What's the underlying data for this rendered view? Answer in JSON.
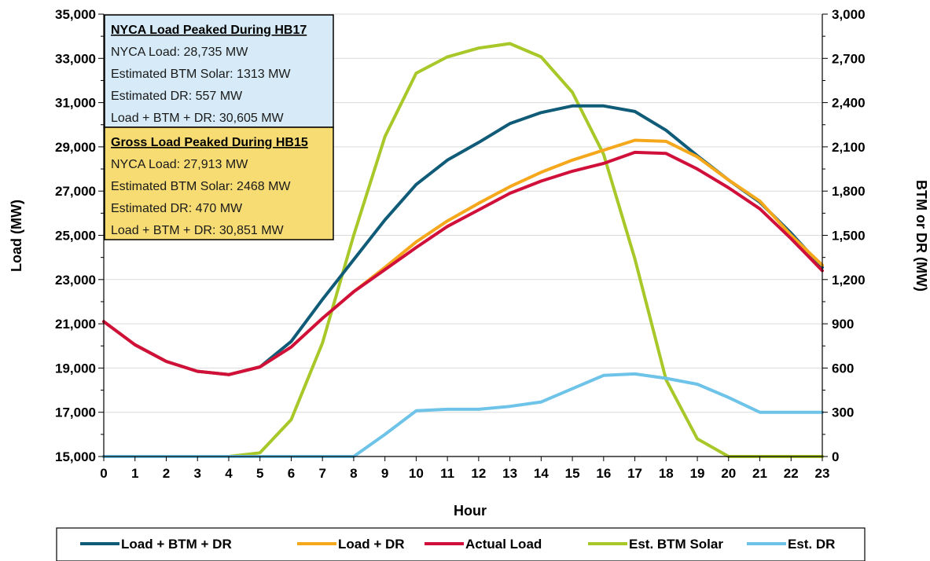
{
  "chart_data": {
    "type": "line",
    "xlabel": "Hour",
    "ylabel": "Load (MW)",
    "y2label": "BTM or DR (MW)",
    "x": [
      0,
      1,
      2,
      3,
      4,
      5,
      6,
      7,
      8,
      9,
      10,
      11,
      12,
      13,
      14,
      15,
      16,
      17,
      18,
      19,
      20,
      21,
      22,
      23
    ],
    "ylim": [
      15000,
      35000
    ],
    "yticks": [
      15000,
      17000,
      19000,
      21000,
      23000,
      25000,
      27000,
      29000,
      31000,
      33000,
      35000
    ],
    "ytick_labels": [
      "15,000",
      "17,000",
      "19,000",
      "21,000",
      "23,000",
      "25,000",
      "27,000",
      "29,000",
      "31,000",
      "33,000",
      "35,000"
    ],
    "y2lim": [
      0,
      3000
    ],
    "y2ticks": [
      0,
      300,
      600,
      900,
      1200,
      1500,
      1800,
      2100,
      2400,
      2700,
      3000
    ],
    "y2tick_labels": [
      "0",
      "300",
      "600",
      "900",
      "1,200",
      "1,500",
      "1,800",
      "2,100",
      "2,400",
      "2,700",
      "3,000"
    ],
    "legend_position": "bottom",
    "series": [
      {
        "name": "Load + BTM + DR",
        "axis": "left",
        "color": "#0f5b78",
        "values": [
          21100,
          20050,
          19300,
          18850,
          18700,
          19050,
          20200,
          22100,
          23900,
          25700,
          27300,
          28400,
          29200,
          30050,
          30550,
          30850,
          30850,
          30600,
          29750,
          28600,
          27500,
          26500,
          25100,
          23550
        ]
      },
      {
        "name": "Load + DR",
        "axis": "left",
        "color": "#f5a81c",
        "values": [
          21100,
          20050,
          19300,
          18850,
          18700,
          19050,
          19950,
          21250,
          22450,
          23550,
          24700,
          25650,
          26450,
          27200,
          27850,
          28400,
          28850,
          29300,
          29250,
          28550,
          27500,
          26550,
          25000,
          23650
        ]
      },
      {
        "name": "Actual Load",
        "axis": "left",
        "color": "#d0103a",
        "values": [
          21100,
          20050,
          19300,
          18850,
          18700,
          19050,
          19950,
          21250,
          22450,
          23450,
          24450,
          25400,
          26150,
          26900,
          27450,
          27900,
          28250,
          28750,
          28700,
          28000,
          27150,
          26200,
          24850,
          23400
        ]
      },
      {
        "name": "Est. BTM Solar",
        "axis": "right",
        "color": "#a8c82a",
        "values": [
          0,
          0,
          0,
          0,
          0,
          25,
          250,
          770,
          1500,
          2170,
          2600,
          2710,
          2770,
          2800,
          2710,
          2470,
          2050,
          1340,
          520,
          120,
          0,
          0,
          0,
          0
        ]
      },
      {
        "name": "Est. DR",
        "axis": "right",
        "color": "#6ec3e8",
        "values": [
          0,
          0,
          0,
          0,
          0,
          0,
          0,
          0,
          0,
          150,
          310,
          320,
          320,
          340,
          370,
          460,
          550,
          560,
          530,
          490,
          400,
          300,
          300,
          300
        ]
      }
    ],
    "annotations": [
      {
        "title": "NYCA Load Peaked During HB17",
        "lines": [
          "NYCA Load: 28,735 MW",
          "Estimated BTM Solar: 1313 MW",
          "Estimated DR: 557 MW",
          "Load + BTM + DR: 30,605 MW"
        ],
        "color": "#d6ebf7"
      },
      {
        "title": "Gross Load Peaked During HB15",
        "lines": [
          "NYCA Load: 27,913 MW",
          "Estimated BTM Solar: 2468 MW",
          "Estimated DR: 470 MW",
          "Load + BTM + DR: 30,851 MW"
        ],
        "color": "#f7dc73"
      }
    ]
  }
}
